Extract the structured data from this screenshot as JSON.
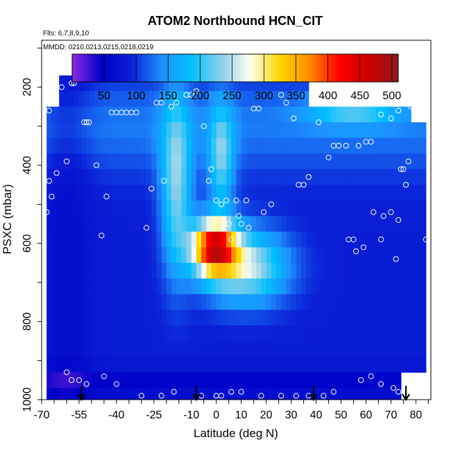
{
  "chart_data": {
    "type": "heatmap",
    "title": "ATOM2 Northbound HCN_CIT",
    "flights_note": "Flts: 6,7,8,9,10",
    "dates_note": "MMDD: 0210,0213,0215,0218,0219",
    "xlabel": "Latitude (deg N)",
    "ylabel": "PSXC (mbar)",
    "xlim": [
      -70,
      86
    ],
    "ylim": [
      1000,
      80
    ],
    "x_tick_labels": [
      "-70",
      "-55",
      "-40",
      "-25",
      "-10",
      "0",
      "10",
      "20",
      "30",
      "40",
      "50",
      "60",
      "70",
      "80"
    ],
    "y_tick_labels": [
      "200",
      "400",
      "600",
      "800",
      "1000"
    ],
    "colorbar": {
      "range": [
        0,
        510
      ],
      "tick_labels": [
        "50",
        "100",
        "150",
        "200",
        "250",
        "300",
        "350",
        "400",
        "450",
        "500"
      ],
      "colors": [
        "#8a2be2",
        "#0000c8",
        "#0a1fd6",
        "#1e90ff",
        "#00bfff",
        "#87ceeb",
        "#fffff0",
        "#ffd700",
        "#ff8c00",
        "#ff0000",
        "#cd0000",
        "#8b1a1a"
      ]
    },
    "arrow_latitudes": [
      -54,
      -8,
      39,
      76
    ],
    "observation_points": [
      [
        -68,
        240
      ],
      [
        -67,
        260
      ],
      [
        -66,
        480
      ],
      [
        -67,
        440
      ],
      [
        -68,
        520
      ],
      [
        -64,
        420
      ],
      [
        -62,
        200
      ],
      [
        -60,
        390
      ],
      [
        -58,
        190
      ],
      [
        -57,
        190
      ],
      [
        -53,
        290
      ],
      [
        -52,
        290
      ],
      [
        -51,
        290
      ],
      [
        -48,
        400
      ],
      [
        -46,
        580
      ],
      [
        -44,
        480
      ],
      [
        -42,
        265
      ],
      [
        -40,
        265
      ],
      [
        -38,
        265
      ],
      [
        -36,
        265
      ],
      [
        -34,
        265
      ],
      [
        -32,
        265
      ],
      [
        -28,
        560
      ],
      [
        -26,
        460
      ],
      [
        -24,
        240
      ],
      [
        -22,
        240
      ],
      [
        -21,
        440
      ],
      [
        -18,
        250
      ],
      [
        -16,
        240
      ],
      [
        -12,
        220
      ],
      [
        -10,
        220
      ],
      [
        -8,
        210
      ],
      [
        -5,
        300
      ],
      [
        -3,
        440
      ],
      [
        -2,
        410
      ],
      [
        0,
        490
      ],
      [
        0,
        540
      ],
      [
        2,
        500
      ],
      [
        4,
        490
      ],
      [
        5,
        550
      ],
      [
        6,
        590
      ],
      [
        8,
        490
      ],
      [
        9,
        530
      ],
      [
        10,
        550
      ],
      [
        12,
        490
      ],
      [
        13,
        560
      ],
      [
        15,
        255
      ],
      [
        17,
        255
      ],
      [
        19,
        520
      ],
      [
        22,
        500
      ],
      [
        26,
        220
      ],
      [
        28,
        240
      ],
      [
        31,
        280
      ],
      [
        33,
        450
      ],
      [
        35,
        450
      ],
      [
        37,
        430
      ],
      [
        40,
        220
      ],
      [
        41,
        290
      ],
      [
        44,
        220
      ],
      [
        45,
        380
      ],
      [
        47,
        350
      ],
      [
        49,
        350
      ],
      [
        52,
        350
      ],
      [
        53,
        590
      ],
      [
        55,
        590
      ],
      [
        56,
        620
      ],
      [
        57,
        350
      ],
      [
        59,
        610
      ],
      [
        60,
        340
      ],
      [
        62,
        340
      ],
      [
        63,
        520
      ],
      [
        66,
        590
      ],
      [
        67,
        530
      ],
      [
        70,
        520
      ],
      [
        72,
        640
      ],
      [
        73,
        540
      ],
      [
        74,
        410
      ],
      [
        75,
        410
      ],
      [
        76,
        450
      ],
      [
        77,
        390
      ],
      [
        78,
        250
      ],
      [
        80,
        280
      ],
      [
        82,
        280
      ],
      [
        84,
        590
      ],
      [
        66,
        270
      ],
      [
        70,
        280
      ],
      [
        73,
        260
      ],
      [
        -60,
        930
      ],
      [
        -58,
        950
      ],
      [
        -55,
        950
      ],
      [
        -52,
        960
      ],
      [
        -45,
        940
      ],
      [
        -40,
        960
      ],
      [
        -30,
        990
      ],
      [
        -22,
        990
      ],
      [
        -17,
        980
      ],
      [
        -6,
        990
      ],
      [
        0,
        990
      ],
      [
        2,
        990
      ],
      [
        6,
        980
      ],
      [
        10,
        980
      ],
      [
        18,
        990
      ],
      [
        26,
        990
      ],
      [
        32,
        990
      ],
      [
        37,
        990
      ],
      [
        43,
        990
      ],
      [
        47,
        980
      ],
      [
        58,
        950
      ],
      [
        62,
        940
      ],
      [
        66,
        960
      ],
      [
        71,
        970
      ],
      [
        73,
        980
      ]
    ],
    "grid": false
  }
}
